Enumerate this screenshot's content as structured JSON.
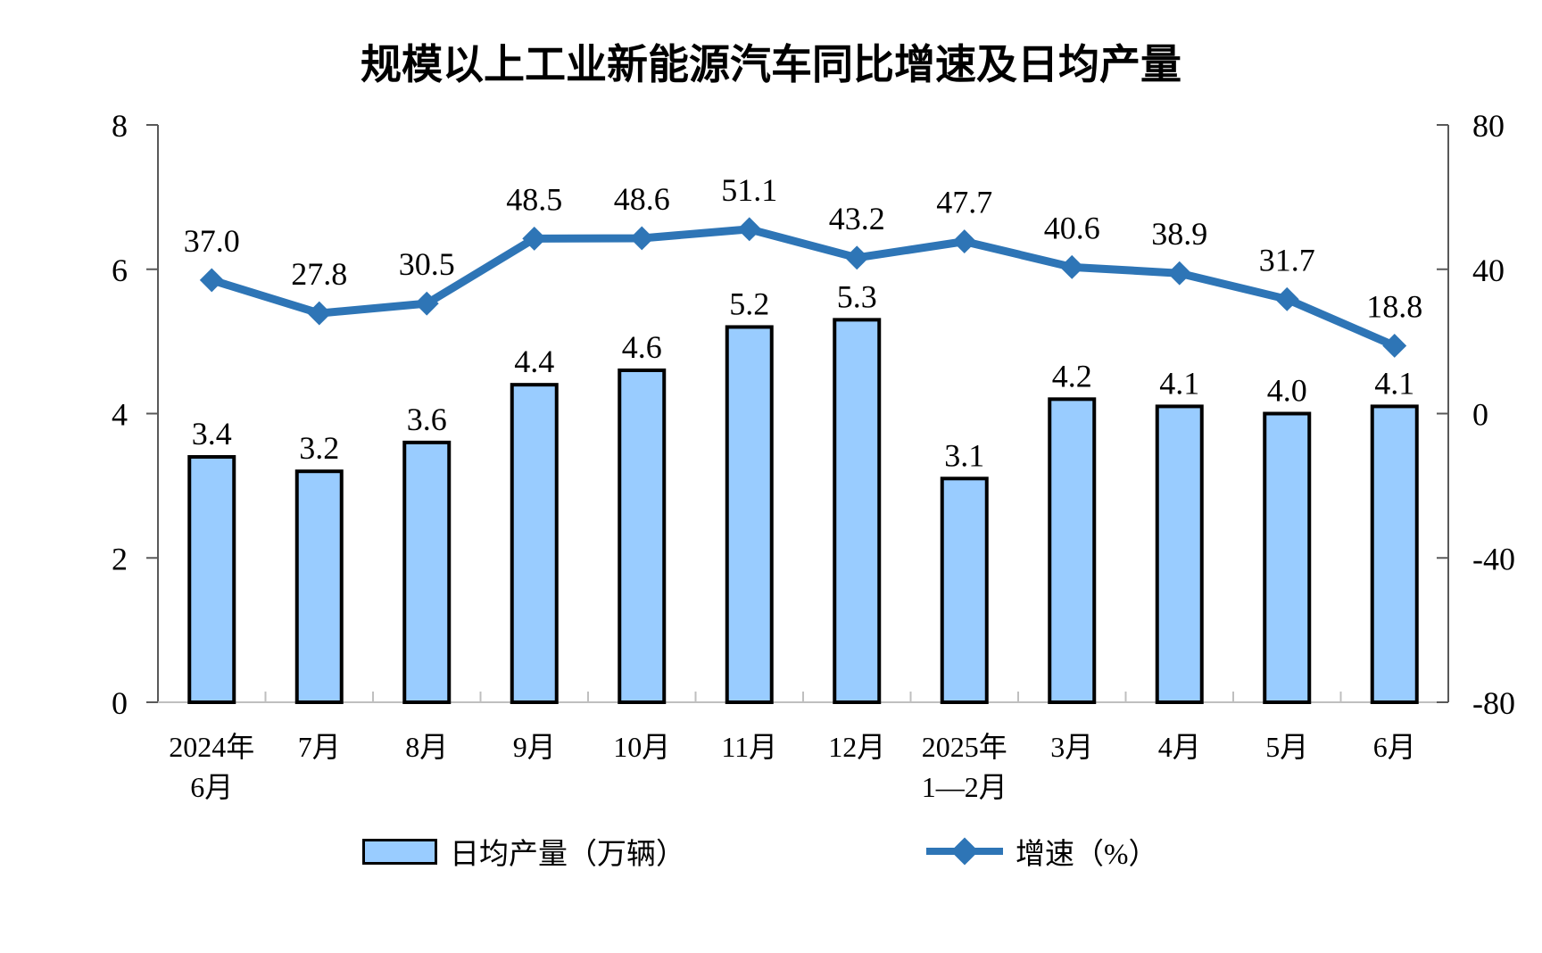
{
  "chart_data": {
    "type": "combo-bar-line",
    "title": "规模以上工业新能源汽车同比增速及日均产量",
    "categories": [
      "2024年\n6月",
      "7月",
      "8月",
      "9月",
      "10月",
      "11月",
      "12月",
      "2025年\n1—2月",
      "3月",
      "4月",
      "5月",
      "6月"
    ],
    "series": [
      {
        "name": "日均产量（万辆）",
        "type": "bar",
        "axis": "left",
        "values": [
          3.4,
          3.2,
          3.6,
          4.4,
          4.6,
          5.2,
          5.3,
          3.1,
          4.2,
          4.1,
          4.0,
          4.1
        ]
      },
      {
        "name": "增速（%）",
        "type": "line",
        "axis": "right",
        "values": [
          37.0,
          27.8,
          30.5,
          48.5,
          48.6,
          51.1,
          43.2,
          47.7,
          40.6,
          38.9,
          31.7,
          18.8
        ]
      }
    ],
    "left_axis": {
      "min": 0,
      "max": 8,
      "ticks": [
        0,
        2,
        4,
        6,
        8
      ]
    },
    "right_axis": {
      "min": -80,
      "max": 80,
      "ticks": [
        -80,
        -40,
        0,
        40,
        80
      ]
    },
    "grid": false,
    "legend_position": "bottom",
    "colors": {
      "bar_fill": "#99CCFF",
      "bar_border": "#000000",
      "line": "#2E75B6",
      "axis": "#595959",
      "baseline": "#BFBFBF"
    }
  }
}
